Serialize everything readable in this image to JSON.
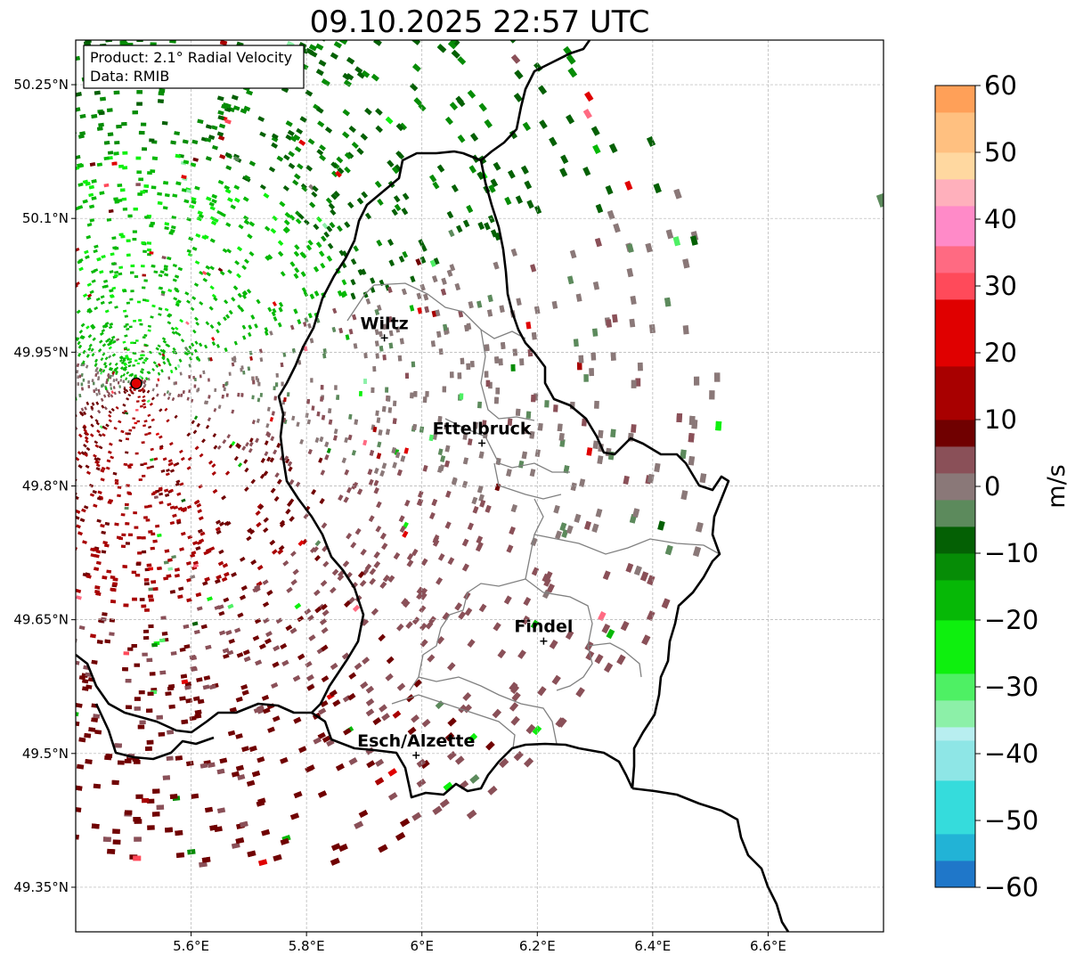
{
  "title": "09.10.2025 22:57 UTC",
  "info_box": {
    "product": "Product: 2.1° Radial Velocity",
    "data_source": "Data: RMIB"
  },
  "map": {
    "lon_range": [
      5.4,
      6.8
    ],
    "lat_range": [
      49.3,
      50.3
    ],
    "lon_ticks": [
      {
        "value": 5.6,
        "label": "5.6°E"
      },
      {
        "value": 5.8,
        "label": "5.8°E"
      },
      {
        "value": 6.0,
        "label": "6°E"
      },
      {
        "value": 6.2,
        "label": "6.2°E"
      },
      {
        "value": 6.4,
        "label": "6.4°E"
      },
      {
        "value": 6.6,
        "label": "6.6°E"
      }
    ],
    "lat_ticks": [
      {
        "value": 50.25,
        "label": "50.25°N"
      },
      {
        "value": 50.1,
        "label": "50.1°N"
      },
      {
        "value": 49.95,
        "label": "49.95°N"
      },
      {
        "value": 49.8,
        "label": "49.8°N"
      },
      {
        "value": 49.65,
        "label": "49.65°N"
      },
      {
        "value": 49.5,
        "label": "49.5°N"
      },
      {
        "value": 49.35,
        "label": "49.35°N"
      }
    ],
    "grid": true,
    "radar_site": {
      "lon": 5.505,
      "lat": 49.915
    },
    "cities": [
      {
        "name": "Wiltz",
        "lon": 5.935,
        "lat": 49.966
      },
      {
        "name": "Ettelbruck",
        "lon": 6.104,
        "lat": 49.848
      },
      {
        "name": "Findel",
        "lon": 6.211,
        "lat": 49.626
      },
      {
        "name": "Esch/Alzette",
        "lon": 5.99,
        "lat": 49.498
      }
    ]
  },
  "colorbar": {
    "unit": "m/s",
    "range": [
      -60,
      60
    ],
    "ticks": [
      {
        "value": 60,
        "label": "60"
      },
      {
        "value": 50,
        "label": "50"
      },
      {
        "value": 40,
        "label": "40"
      },
      {
        "value": 30,
        "label": "30"
      },
      {
        "value": 20,
        "label": "20"
      },
      {
        "value": 10,
        "label": "10"
      },
      {
        "value": 0,
        "label": "0"
      },
      {
        "value": -10,
        "label": "−10"
      },
      {
        "value": -20,
        "label": "−20"
      },
      {
        "value": -30,
        "label": "−30"
      },
      {
        "value": -40,
        "label": "−40"
      },
      {
        "value": -50,
        "label": "−50"
      },
      {
        "value": -60,
        "label": "−60"
      }
    ],
    "stops": [
      {
        "from": -60,
        "to": -56,
        "color": "#1f77c9"
      },
      {
        "from": -56,
        "to": -52,
        "color": "#22b3d6"
      },
      {
        "from": -52,
        "to": -44,
        "color": "#35dcdc"
      },
      {
        "from": -44,
        "to": -38,
        "color": "#8ee6e6"
      },
      {
        "from": -38,
        "to": -36,
        "color": "#b8eef0"
      },
      {
        "from": -36,
        "to": -32,
        "color": "#8cf0a8"
      },
      {
        "from": -32,
        "to": -28,
        "color": "#4ef064"
      },
      {
        "from": -28,
        "to": -20,
        "color": "#0ef00e"
      },
      {
        "from": -20,
        "to": -14,
        "color": "#06b806"
      },
      {
        "from": -14,
        "to": -10,
        "color": "#068c06"
      },
      {
        "from": -10,
        "to": -6,
        "color": "#046004"
      },
      {
        "from": -6,
        "to": -2,
        "color": "#5c8a5c"
      },
      {
        "from": -2,
        "to": 2,
        "color": "#8a7878"
      },
      {
        "from": 2,
        "to": 6,
        "color": "#8a5058"
      },
      {
        "from": 6,
        "to": 10,
        "color": "#700000"
      },
      {
        "from": 10,
        "to": 18,
        "color": "#a80000"
      },
      {
        "from": 18,
        "to": 28,
        "color": "#e00000"
      },
      {
        "from": 28,
        "to": 32,
        "color": "#ff4a5a"
      },
      {
        "from": 32,
        "to": 36,
        "color": "#ff6a82"
      },
      {
        "from": 36,
        "to": 42,
        "color": "#ff8ac8"
      },
      {
        "from": 42,
        "to": 46,
        "color": "#ffb0bc"
      },
      {
        "from": 46,
        "to": 50,
        "color": "#ffd8a0"
      },
      {
        "from": 50,
        "to": 56,
        "color": "#ffc080"
      },
      {
        "from": 56,
        "to": 60,
        "color": "#ffa058"
      }
    ]
  }
}
